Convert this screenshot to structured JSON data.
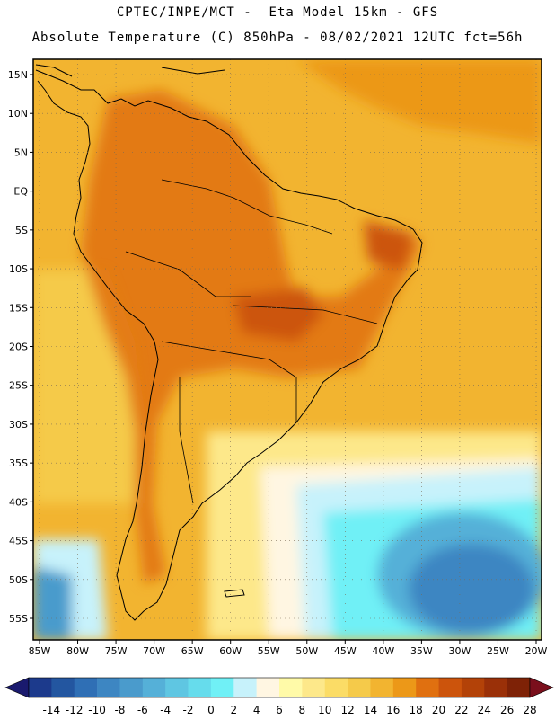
{
  "header": {
    "line1": "CPTEC/INPE/MCT -  Eta Model 15km - GFS",
    "line2": "Absolute Temperature (C) 850hPa - 08/02/2021 12UTC fct=56h"
  },
  "map": {
    "lat_labels": [
      "15N",
      "10N",
      "5N",
      "EQ",
      "5S",
      "10S",
      "15S",
      "20S",
      "25S",
      "30S",
      "35S",
      "40S",
      "45S",
      "50S",
      "55S"
    ],
    "lon_labels": [
      "85W",
      "80W",
      "75W",
      "70W",
      "65W",
      "60W",
      "55W",
      "50W",
      "45W",
      "40W",
      "35W",
      "30W",
      "25W",
      "20W"
    ]
  },
  "colorbar": {
    "labels": [
      "-14",
      "-12",
      "-10",
      "-8",
      "-6",
      "-4",
      "-2",
      "0",
      "2",
      "4",
      "6",
      "8",
      "10",
      "12",
      "14",
      "16",
      "18",
      "20",
      "22",
      "24",
      "26",
      "28"
    ],
    "colors": [
      "#1c3a8c",
      "#2356a0",
      "#2f6fb5",
      "#3d86c2",
      "#4a9bcc",
      "#55b0d8",
      "#5fc6e2",
      "#66dcec",
      "#70f0f6",
      "#c7f2fb",
      "#fff6e2",
      "#fffaa8",
      "#fde88a",
      "#fbdc66",
      "#f5ca4a",
      "#f2b430",
      "#ec9818",
      "#e07010",
      "#cc540c",
      "#b34208",
      "#9a3008",
      "#7e2206"
    ],
    "arrow_left_color": "#1a1a6e",
    "arrow_right_color": "#7a0f1c"
  }
}
